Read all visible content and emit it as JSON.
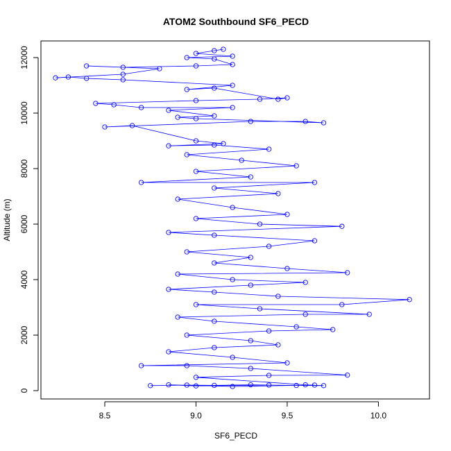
{
  "chart_data": {
    "type": "scatter",
    "title": "ATOM2 Southbound SF6_PECD",
    "xlabel": "SF6_PECD",
    "ylabel": "Altitude (m)",
    "xlim": [
      8.15,
      10.28
    ],
    "ylim": [
      -300,
      12600
    ],
    "xticks": [
      8.5,
      9.0,
      9.5,
      10.0
    ],
    "xtick_labels": [
      "8.5",
      "9.0",
      "9.5",
      "10.0"
    ],
    "yticks": [
      0,
      2000,
      4000,
      6000,
      8000,
      10000,
      12000
    ],
    "ytick_labels": [
      "0",
      "2000",
      "4000",
      "6000",
      "8000",
      "10000",
      "12000"
    ],
    "grid": false,
    "legend": "none",
    "series": [
      {
        "color": "#0000ff",
        "marker": "open-circle",
        "connected": true,
        "points": [
          [
            8.75,
            180
          ],
          [
            8.95,
            200
          ],
          [
            9.1,
            190
          ],
          [
            9.3,
            210
          ],
          [
            9.55,
            185
          ],
          [
            9.65,
            200
          ],
          [
            9.2,
            150
          ],
          [
            8.85,
            210
          ],
          [
            9.0,
            170
          ],
          [
            9.4,
            200
          ],
          [
            9.7,
            180
          ],
          [
            9.6,
            210
          ],
          [
            9.0,
            480
          ],
          [
            9.4,
            550
          ],
          [
            9.83,
            560
          ],
          [
            9.3,
            800
          ],
          [
            8.95,
            900
          ],
          [
            8.7,
            900
          ],
          [
            9.5,
            1000
          ],
          [
            9.2,
            1200
          ],
          [
            8.85,
            1400
          ],
          [
            9.1,
            1550
          ],
          [
            9.45,
            1650
          ],
          [
            9.3,
            1800
          ],
          [
            8.95,
            2000
          ],
          [
            9.4,
            2150
          ],
          [
            9.75,
            2200
          ],
          [
            9.55,
            2300
          ],
          [
            9.1,
            2500
          ],
          [
            8.9,
            2650
          ],
          [
            9.6,
            2750
          ],
          [
            9.95,
            2750
          ],
          [
            9.35,
            2950
          ],
          [
            9.0,
            3100
          ],
          [
            9.8,
            3100
          ],
          [
            10.17,
            3280
          ],
          [
            9.45,
            3400
          ],
          [
            9.1,
            3550
          ],
          [
            8.85,
            3650
          ],
          [
            9.3,
            3800
          ],
          [
            9.6,
            3900
          ],
          [
            9.2,
            4000
          ],
          [
            8.9,
            4200
          ],
          [
            9.83,
            4250
          ],
          [
            9.5,
            4400
          ],
          [
            9.1,
            4600
          ],
          [
            9.3,
            4800
          ],
          [
            8.95,
            5000
          ],
          [
            9.4,
            5200
          ],
          [
            9.65,
            5400
          ],
          [
            9.1,
            5600
          ],
          [
            8.85,
            5700
          ],
          [
            9.8,
            5920
          ],
          [
            9.35,
            6000
          ],
          [
            9.0,
            6200
          ],
          [
            9.5,
            6350
          ],
          [
            9.2,
            6600
          ],
          [
            8.9,
            6900
          ],
          [
            9.45,
            7100
          ],
          [
            9.1,
            7300
          ],
          [
            9.65,
            7500
          ],
          [
            8.7,
            7500
          ],
          [
            9.3,
            7700
          ],
          [
            9.0,
            7900
          ],
          [
            9.55,
            8100
          ],
          [
            9.25,
            8300
          ],
          [
            8.95,
            8500
          ],
          [
            9.4,
            8700
          ],
          [
            9.1,
            8850
          ],
          [
            8.85,
            8820
          ],
          [
            9.15,
            8900
          ],
          [
            9.0,
            9000
          ],
          [
            8.65,
            9550
          ],
          [
            8.5,
            9500
          ],
          [
            9.3,
            9700
          ],
          [
            9.6,
            9700
          ],
          [
            9.7,
            9650
          ],
          [
            9.0,
            9800
          ],
          [
            8.9,
            9850
          ],
          [
            9.1,
            9900
          ],
          [
            8.85,
            10100
          ],
          [
            9.2,
            10200
          ],
          [
            8.7,
            10200
          ],
          [
            8.55,
            10300
          ],
          [
            8.45,
            10350
          ],
          [
            9.0,
            10450
          ],
          [
            9.35,
            10500
          ],
          [
            9.5,
            10550
          ],
          [
            9.45,
            10500
          ],
          [
            9.1,
            10900
          ],
          [
            8.95,
            10850
          ],
          [
            9.2,
            11000
          ],
          [
            8.6,
            11200
          ],
          [
            8.4,
            11250
          ],
          [
            8.3,
            11300
          ],
          [
            8.23,
            11270
          ],
          [
            8.6,
            11400
          ],
          [
            8.8,
            11600
          ],
          [
            8.4,
            11700
          ],
          [
            8.6,
            11650
          ],
          [
            9.0,
            11700
          ],
          [
            9.2,
            11750
          ],
          [
            9.1,
            11950
          ],
          [
            8.95,
            12000
          ],
          [
            9.2,
            12050
          ],
          [
            9.0,
            12150
          ],
          [
            9.1,
            12250
          ],
          [
            9.15,
            12300
          ]
        ]
      }
    ]
  }
}
